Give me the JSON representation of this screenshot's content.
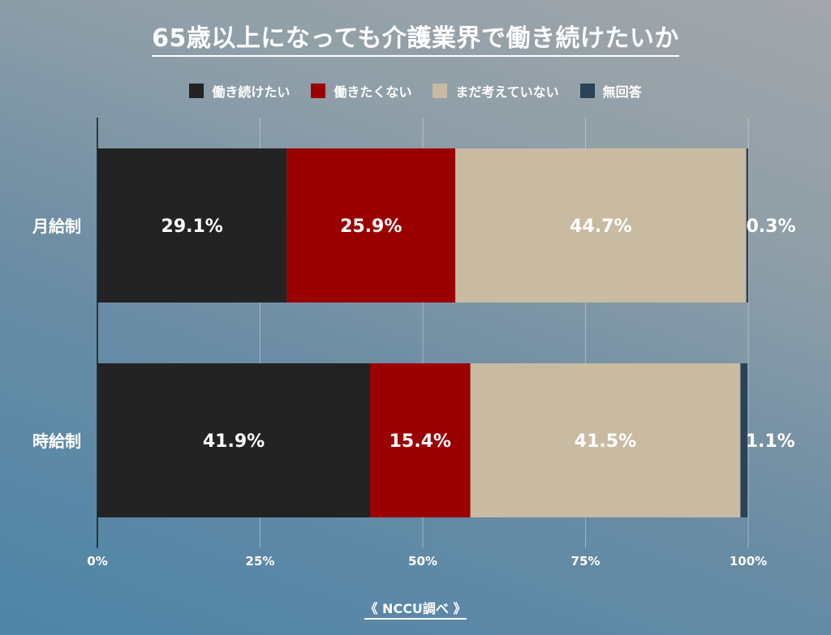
{
  "title": "65歳以上になっても介護業界で働き続けたいか",
  "source": "《 NCCU調べ 》",
  "legend": [
    {
      "label": "働き続けたい",
      "color": "#232323"
    },
    {
      "label": "働きたくない",
      "color": "#9b0000"
    },
    {
      "label": "まだ考えていない",
      "color": "#c8bba2"
    },
    {
      "label": "無回答",
      "color": "#2a4359"
    }
  ],
  "chart_data": {
    "type": "bar",
    "orientation": "horizontal",
    "stacked": "100%",
    "categories": [
      "月給制",
      "時給制"
    ],
    "series": [
      {
        "name": "働き続けたい",
        "values": [
          29.1,
          41.9
        ],
        "labels": [
          "29.1%",
          "41.9%"
        ],
        "color": "#232323"
      },
      {
        "name": "働きたくない",
        "values": [
          25.9,
          15.4
        ],
        "labels": [
          "25.9%",
          "15.4%"
        ],
        "color": "#9b0000"
      },
      {
        "name": "まだ考えていない",
        "values": [
          44.7,
          41.5
        ],
        "labels": [
          "44.7%",
          "41.5%"
        ],
        "color": "#c8bba2"
      },
      {
        "name": "無回答",
        "values": [
          0.3,
          1.1
        ],
        "labels": [
          "0.3%",
          "1.1%"
        ],
        "color": "#2a4359"
      }
    ],
    "xlim": [
      0,
      100
    ],
    "xticks": [
      "0%",
      "25%",
      "50%",
      "75%",
      "100%"
    ],
    "grid": true,
    "legend_position": "top"
  }
}
